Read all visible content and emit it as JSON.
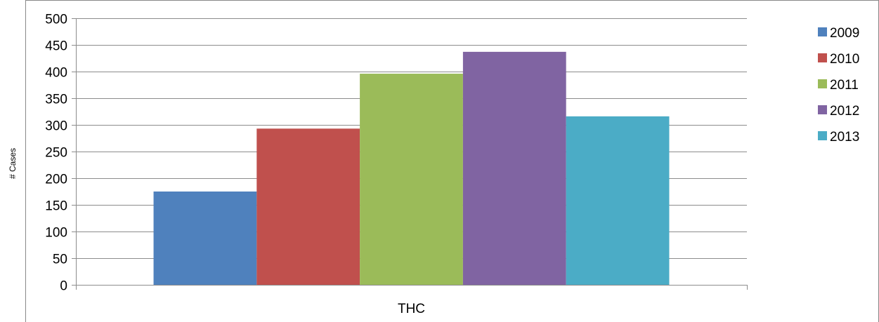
{
  "chart_data": {
    "type": "bar",
    "categories": [
      "THC"
    ],
    "series": [
      {
        "name": "2009",
        "values": [
          175
        ],
        "color": "#4F81BD"
      },
      {
        "name": "2010",
        "values": [
          293
        ],
        "color": "#C0504D"
      },
      {
        "name": "2011",
        "values": [
          396
        ],
        "color": "#9BBB59"
      },
      {
        "name": "2012",
        "values": [
          437
        ],
        "color": "#8064A2"
      },
      {
        "name": "2013",
        "values": [
          316
        ],
        "color": "#4BACC6"
      }
    ],
    "title": "",
    "xlabel": "",
    "ylabel": "# Cases",
    "ylim": [
      0,
      500
    ],
    "yticks": [
      0,
      50,
      100,
      150,
      200,
      250,
      300,
      350,
      400,
      450,
      500
    ],
    "grid": true,
    "legend_position": "right"
  }
}
